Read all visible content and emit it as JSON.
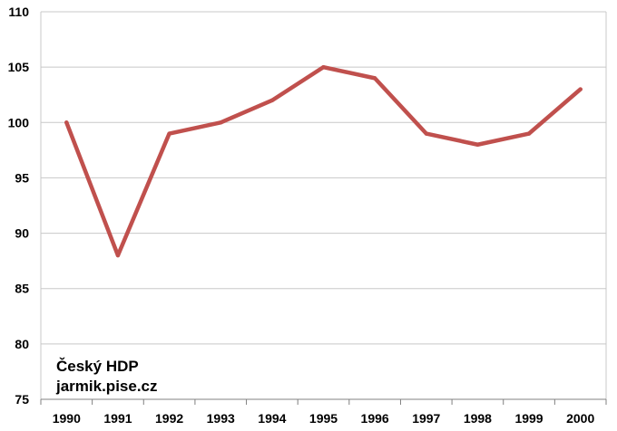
{
  "chart_data": {
    "type": "line",
    "categories": [
      "1990",
      "1991",
      "1992",
      "1993",
      "1994",
      "1995",
      "1996",
      "1997",
      "1998",
      "1999",
      "2000"
    ],
    "series": [
      {
        "values": [
          100,
          88,
          99,
          100,
          102,
          105,
          104,
          99,
          98,
          99,
          103
        ],
        "color": "#c0504d"
      }
    ],
    "ylim": [
      75,
      110
    ],
    "yticks": [
      "75",
      "80",
      "85",
      "90",
      "95",
      "100",
      "105",
      "110"
    ],
    "grid": true,
    "legend": "none",
    "annotations": [
      "Český HDP",
      "jarmik.pise.cz"
    ]
  }
}
